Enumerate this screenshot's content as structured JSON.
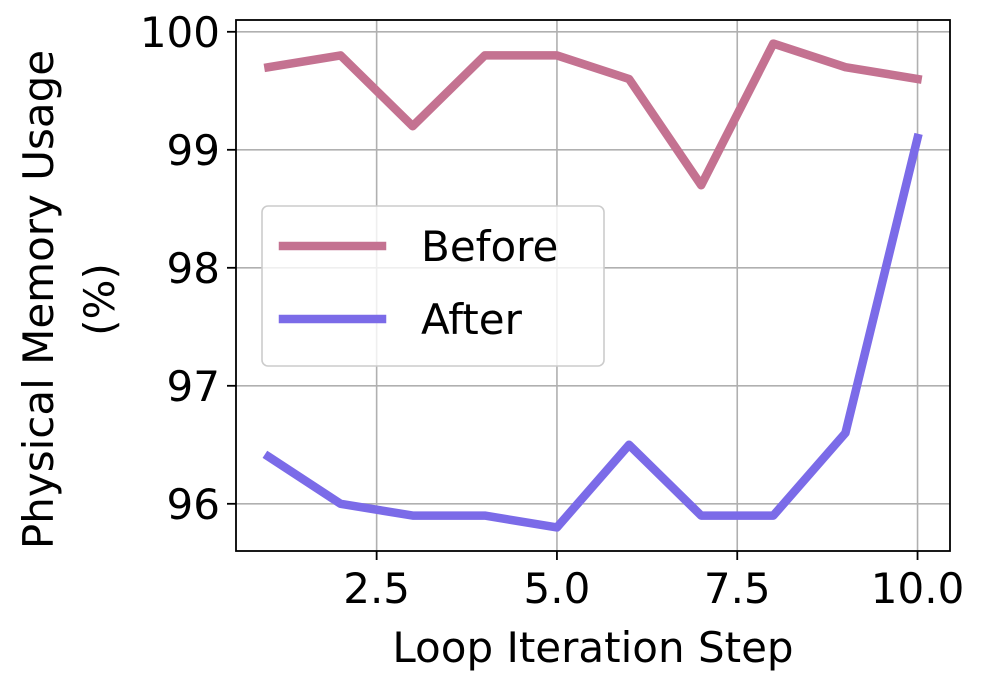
{
  "chart_data": {
    "type": "line",
    "title": "",
    "xlabel": "Loop Iteration Step",
    "ylabel_lines": [
      "Physical Memory Usage",
      "(%)"
    ],
    "x": [
      1,
      2,
      3,
      4,
      5,
      6,
      7,
      8,
      9,
      10
    ],
    "series": [
      {
        "name": "Before",
        "color": "#c47291",
        "values": [
          99.7,
          99.8,
          99.2,
          99.8,
          99.8,
          99.6,
          98.7,
          99.9,
          99.7,
          99.6
        ]
      },
      {
        "name": "After",
        "color": "#7b6be8",
        "values": [
          96.4,
          96.0,
          95.9,
          95.9,
          95.8,
          96.5,
          95.9,
          95.9,
          96.6,
          99.1
        ]
      }
    ],
    "xlim": [
      0.55,
      10.45
    ],
    "ylim": [
      95.6,
      100.1
    ],
    "xticks": [
      2.5,
      5.0,
      7.5,
      10.0
    ],
    "xtick_labels": [
      "2.5",
      "5.0",
      "7.5",
      "10.0"
    ],
    "yticks": [
      96,
      97,
      98,
      99,
      100
    ],
    "ytick_labels": [
      "96",
      "97",
      "98",
      "99",
      "100"
    ],
    "grid": true,
    "legend_placement": "center-left"
  }
}
